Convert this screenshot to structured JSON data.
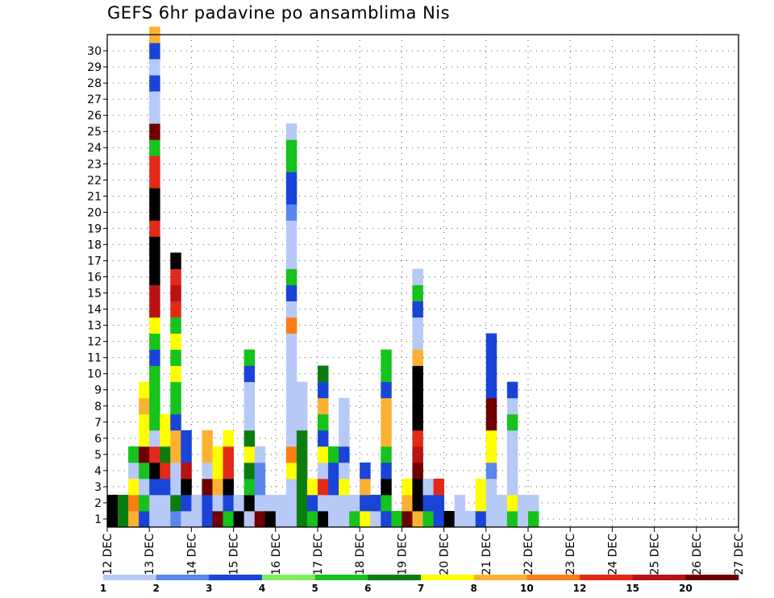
{
  "chart_data": {
    "type": "heatmap",
    "title": "GEFS 6hr padavine po ansamblima Nis",
    "x_tick_labels": [
      "12 DEC",
      "13 DEC",
      "14 DEC",
      "15 DEC",
      "16 DEC",
      "17 DEC",
      "18 DEC",
      "19 DEC",
      "20 DEC",
      "21 DEC",
      "22 DEC",
      "23 DEC",
      "24 DEC",
      "25 DEC",
      "26 DEC",
      "27 DEC"
    ],
    "y_tick_labels": [
      "1",
      "2",
      "3",
      "4",
      "5",
      "6",
      "7",
      "8",
      "9",
      "10",
      "11",
      "12",
      "13",
      "14",
      "15",
      "16",
      "17",
      "18",
      "19",
      "20",
      "21",
      "22",
      "23",
      "24",
      "25",
      "26",
      "27",
      "28",
      "29",
      "30"
    ],
    "time_steps_per_day": 4,
    "legend": {
      "colors": [
        "#b7c9f7",
        "#5a86ee",
        "#1a44d8",
        "#80ee5e",
        "#16c21c",
        "#0b7d0f",
        "#ffff00",
        "#fbb233",
        "#fb7e15",
        "#e22a1a",
        "#b91212",
        "#6e0000"
      ],
      "labels": [
        "1",
        "2",
        "3",
        "4",
        "5",
        "6",
        "7",
        "8",
        "10",
        "12",
        "15",
        "20"
      ]
    },
    "grid": "dotted",
    "cells": [
      [
        1,
        "15a",
        "19a"
      ],
      [
        2,
        "3b",
        "3b"
      ],
      [
        3,
        "4b",
        "5a",
        "4a",
        "1a",
        "3a"
      ],
      [
        4,
        "2a",
        "3a",
        "1a",
        "3a",
        "6b",
        "4a",
        "4a",
        "4b",
        "4a"
      ],
      [
        5,
        "1a",
        "1a",
        "2a",
        "10a",
        "5b",
        "1a",
        "3a",
        "3a",
        "3a",
        "3a",
        "2a",
        "3a",
        "4a",
        "6a",
        "6a",
        "8a",
        "8a",
        "7a",
        "5b",
        "7a",
        "9b",
        "5b",
        "5b",
        "3a",
        "6b",
        "1a",
        "1a",
        "2a",
        "1a",
        "2a",
        "4b"
      ],
      [
        6,
        "1a",
        "1a",
        "2a",
        "5b",
        "3b",
        "4a",
        "4a"
      ],
      [
        7,
        "1b",
        "3b",
        "1a",
        "1a",
        "4b",
        "4b",
        "2a",
        "3a",
        "3a",
        "4a",
        "3a",
        "4a",
        "3a",
        "5b",
        "6a",
        "5b",
        "7a"
      ],
      [
        8,
        "1a",
        "2a",
        "7a",
        "6a",
        "2a",
        "2a"
      ],
      [
        9,
        "1a",
        "1a"
      ],
      [
        10,
        "2a",
        "2a",
        "6b",
        "1a",
        "4b",
        "4b"
      ],
      [
        11,
        "6b",
        "1a",
        "4b",
        "4a",
        "4a"
      ],
      [
        12,
        "3a",
        "2a",
        "8a",
        "5b",
        "5b",
        "4a"
      ],
      [
        13,
        "10a",
        "1a"
      ],
      [
        14,
        "1a",
        "11a",
        "3a",
        "3b",
        "4a",
        "3b",
        "1a",
        "1a",
        "1a",
        "2a",
        "3a"
      ],
      [
        15,
        "6b",
        "1a",
        "1b",
        "1b",
        "1a"
      ],
      [
        16,
        "12a",
        "1a"
      ],
      [
        17,
        "1a",
        "1a"
      ],
      [
        18,
        "1a",
        "1a",
        "1a",
        "4a",
        "5a",
        "1a",
        "1a",
        "1a",
        "1a",
        "1a",
        "1a",
        "1a",
        "5a",
        "1a",
        "2a",
        "3a",
        "1a",
        "1a",
        "1a",
        "1b",
        "2a",
        "2a",
        "3a",
        "3a",
        "1a"
      ],
      [
        19,
        "3b",
        "3b",
        "3b",
        "3b",
        "3b",
        "3b",
        "1a",
        "1a",
        "1a"
      ],
      [
        20,
        "3a",
        "2a",
        "4a"
      ],
      [
        21,
        "8a",
        "1a",
        "5b",
        "1a",
        "4a",
        "2a",
        "3a",
        "4b",
        "2a",
        "3b"
      ],
      [
        22,
        "1a",
        "1a",
        "2a",
        "2a",
        "3a"
      ],
      [
        23,
        "1a",
        "1a",
        "4a",
        "1a",
        "2a",
        "1a",
        "1a",
        "1a"
      ],
      [
        24,
        "3a",
        "1a"
      ],
      [
        25,
        "4a",
        "2a",
        "4b",
        "2a"
      ],
      [
        26,
        "1a",
        "2a"
      ],
      [
        27,
        "2a",
        "3a",
        "8a",
        "2a",
        "3a",
        "4b",
        "4b",
        "4b",
        "2a",
        "3a",
        "3a"
      ],
      [
        28,
        "3a"
      ],
      [
        29,
        "6b",
        "4b",
        "4a"
      ],
      [
        30,
        "4b",
        "8a",
        "8a",
        "6b",
        "6a",
        "5b",
        "7a",
        "9b",
        "7a",
        "8a",
        "4b",
        "1a",
        "1a",
        "2a",
        "3a",
        "1a"
      ],
      [
        31,
        "3a",
        "2a",
        "1a"
      ],
      [
        32,
        "2a",
        "2a",
        "5b"
      ],
      [
        33,
        "7b"
      ],
      [
        34,
        "1a",
        "1a"
      ],
      [
        35,
        "1a"
      ],
      [
        36,
        "2a",
        "4a",
        "4a"
      ],
      [
        37,
        "1a",
        "1a",
        "1a",
        "1b",
        "4a",
        "4a",
        "6b",
        "6b",
        "2a",
        "2a",
        "2a",
        "2a"
      ],
      [
        38,
        "1a",
        "1a"
      ],
      [
        39,
        "3a",
        "4a",
        "1a",
        "1a",
        "1a",
        "1a",
        "3a",
        "1a",
        "2a"
      ],
      [
        40,
        "1a",
        "1a"
      ],
      [
        41,
        "3a",
        "1a"
      ]
    ]
  }
}
